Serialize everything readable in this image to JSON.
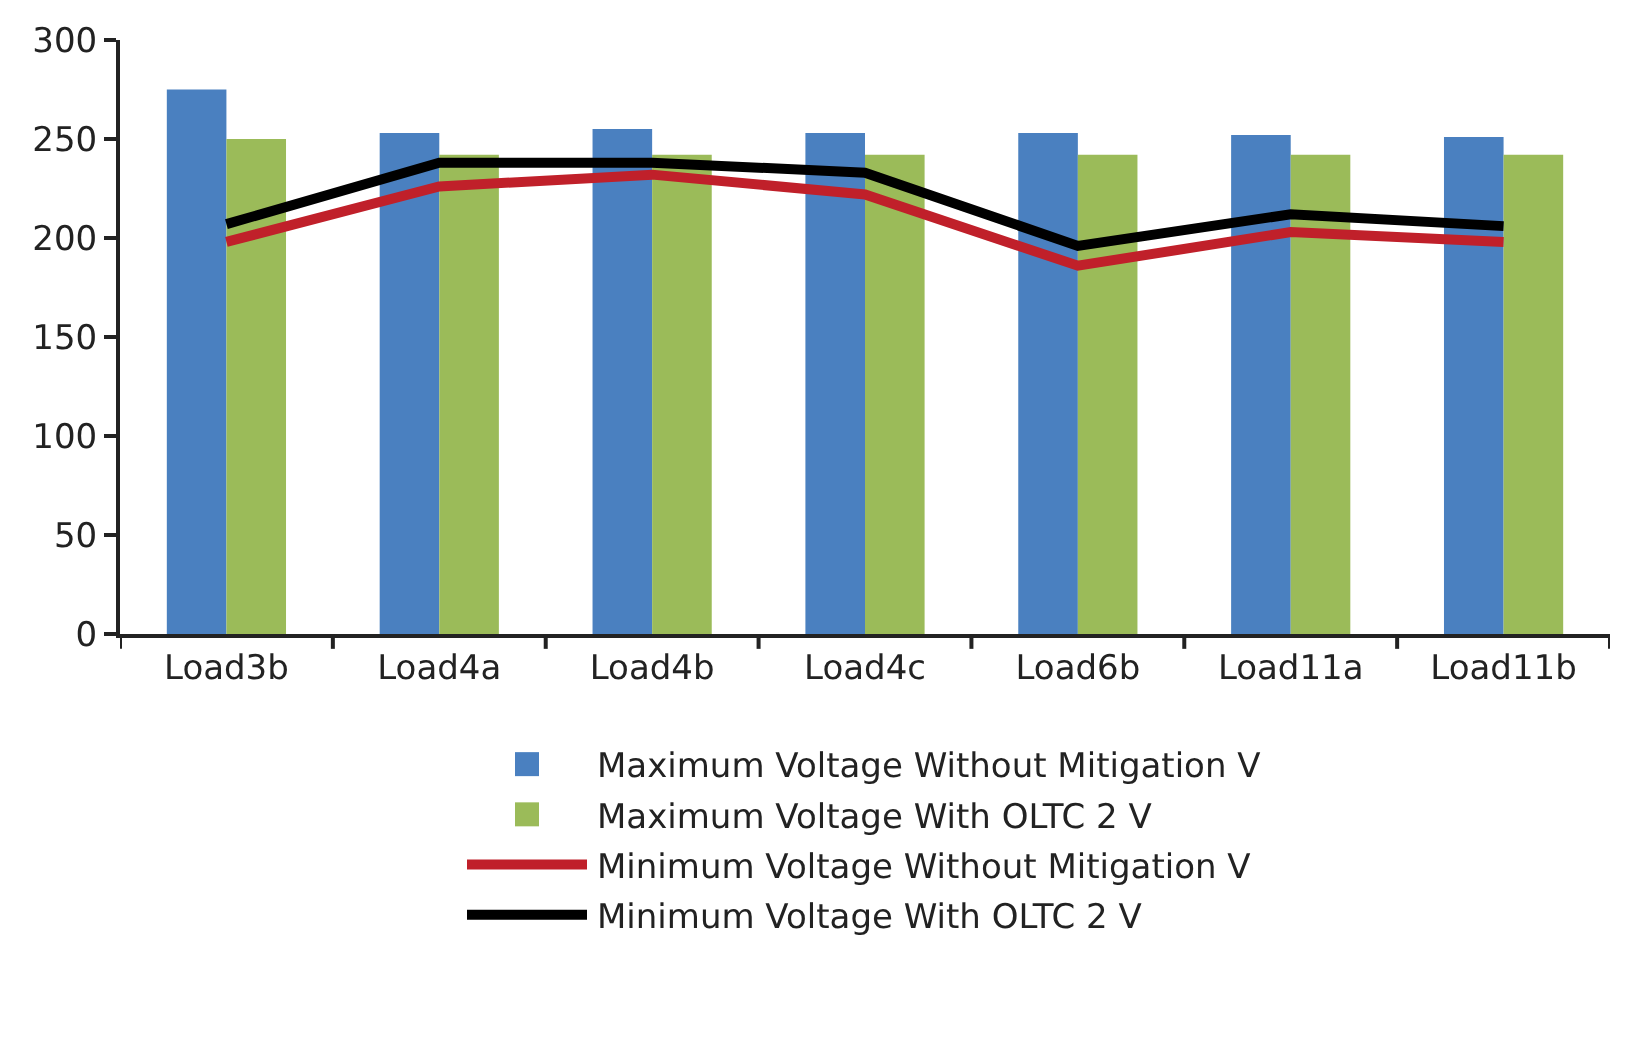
{
  "chart_data": {
    "type": "bar",
    "categories": [
      "Load3b",
      "Load4a",
      "Load4b",
      "Load4c",
      "Load6b",
      "Load11a",
      "Load11b"
    ],
    "series": [
      {
        "name": "Maximum Voltage Without Mitigation V",
        "color": "#4a80c0",
        "values": [
          275,
          253,
          255,
          253,
          253,
          252,
          251
        ]
      },
      {
        "name": "Maximum Voltage With OLTC 2 V",
        "color": "#9bbb59",
        "values": [
          250,
          242,
          242,
          242,
          242,
          242,
          242
        ]
      },
      {
        "name": "Minimum Voltage Without Mitigation V",
        "type": "line",
        "color": "#c0202a",
        "values": [
          198,
          226,
          232,
          222,
          186,
          203,
          198
        ]
      },
      {
        "name": "Minimum Voltage With OLTC 2 V",
        "type": "line",
        "color": "#000000",
        "values": [
          207,
          238,
          238,
          233,
          196,
          212,
          206
        ]
      }
    ],
    "ylim": [
      0,
      300
    ],
    "yticks": [
      0,
      50,
      100,
      150,
      200,
      250,
      300
    ],
    "grid": false,
    "legend": "bottom",
    "marker": "none",
    "line_style": "solid"
  }
}
